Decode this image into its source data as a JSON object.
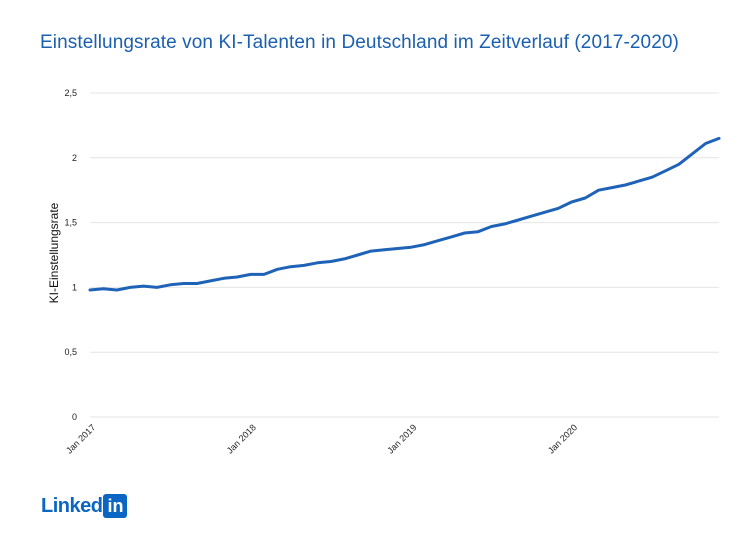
{
  "title": "Einstellungsrate von KI-Talenten in Deutschland im Zeitverlauf (2017-2020)",
  "logo": {
    "wordmark": "Linked",
    "box": "in"
  },
  "chart_data": {
    "type": "line",
    "ylabel": "KI-Einstellungsrate",
    "xlabel": "",
    "ylim": [
      0,
      2.5
    ],
    "yticks": [
      0,
      0.5,
      1,
      1.5,
      2,
      2.5
    ],
    "ytick_labels": [
      "0",
      "0,5",
      "1",
      "1,5",
      "2",
      "2,5"
    ],
    "xtick_labels": [
      {
        "index": 0,
        "label": "Jan 2017"
      },
      {
        "index": 12,
        "label": "Jan 2018"
      },
      {
        "index": 24,
        "label": "Jan 2019"
      },
      {
        "index": 36,
        "label": "Jan 2020"
      }
    ],
    "grid": true,
    "line_color": "#1f63b8",
    "series": [
      {
        "values": [
          0.98,
          0.99,
          0.98,
          1.0,
          1.01,
          1.0,
          1.02,
          1.03,
          1.03,
          1.05,
          1.07,
          1.08,
          1.1,
          1.1,
          1.14,
          1.16,
          1.17,
          1.19,
          1.2,
          1.22,
          1.25,
          1.28,
          1.29,
          1.3,
          1.31,
          1.33,
          1.36,
          1.39,
          1.42,
          1.43,
          1.47,
          1.49,
          1.52,
          1.55,
          1.58,
          1.61,
          1.66,
          1.69,
          1.75,
          1.77,
          1.79,
          1.82,
          1.85,
          1.9,
          1.95,
          2.03,
          2.11,
          2.15
        ]
      }
    ]
  }
}
